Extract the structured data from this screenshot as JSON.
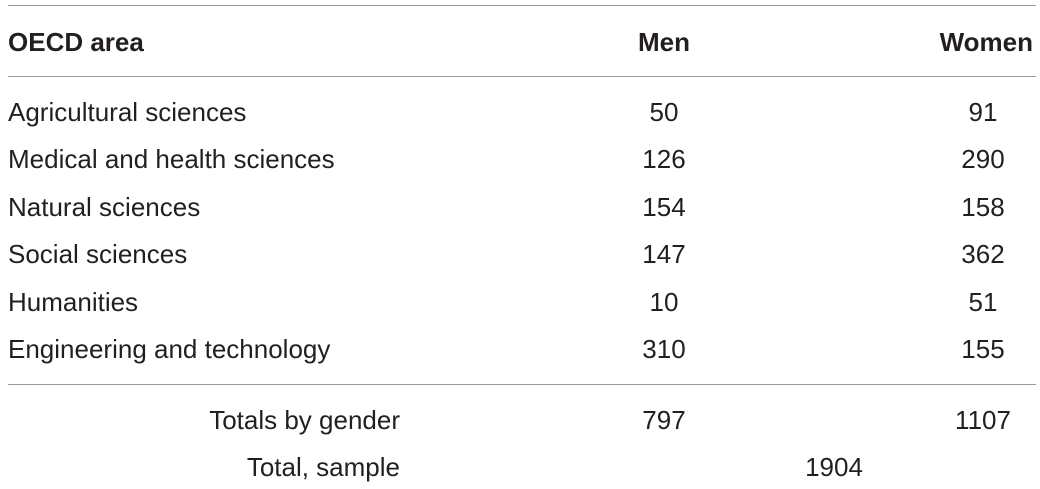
{
  "table": {
    "header": [
      "OECD area",
      "Men",
      "Women"
    ],
    "rows": [
      [
        "Agricultural sciences",
        50,
        91
      ],
      [
        "Medical and health sciences",
        126,
        290
      ],
      [
        "Natural sciences",
        154,
        158
      ],
      [
        "Social sciences",
        147,
        362
      ],
      [
        "Humanities",
        10,
        51
      ],
      [
        "Engineering and technology",
        310,
        155
      ]
    ],
    "totals": {
      "label": "Totals by gender",
      "men": 797,
      "women": 1107
    },
    "sample": {
      "label": "Total, sample",
      "value": 1904
    }
  }
}
